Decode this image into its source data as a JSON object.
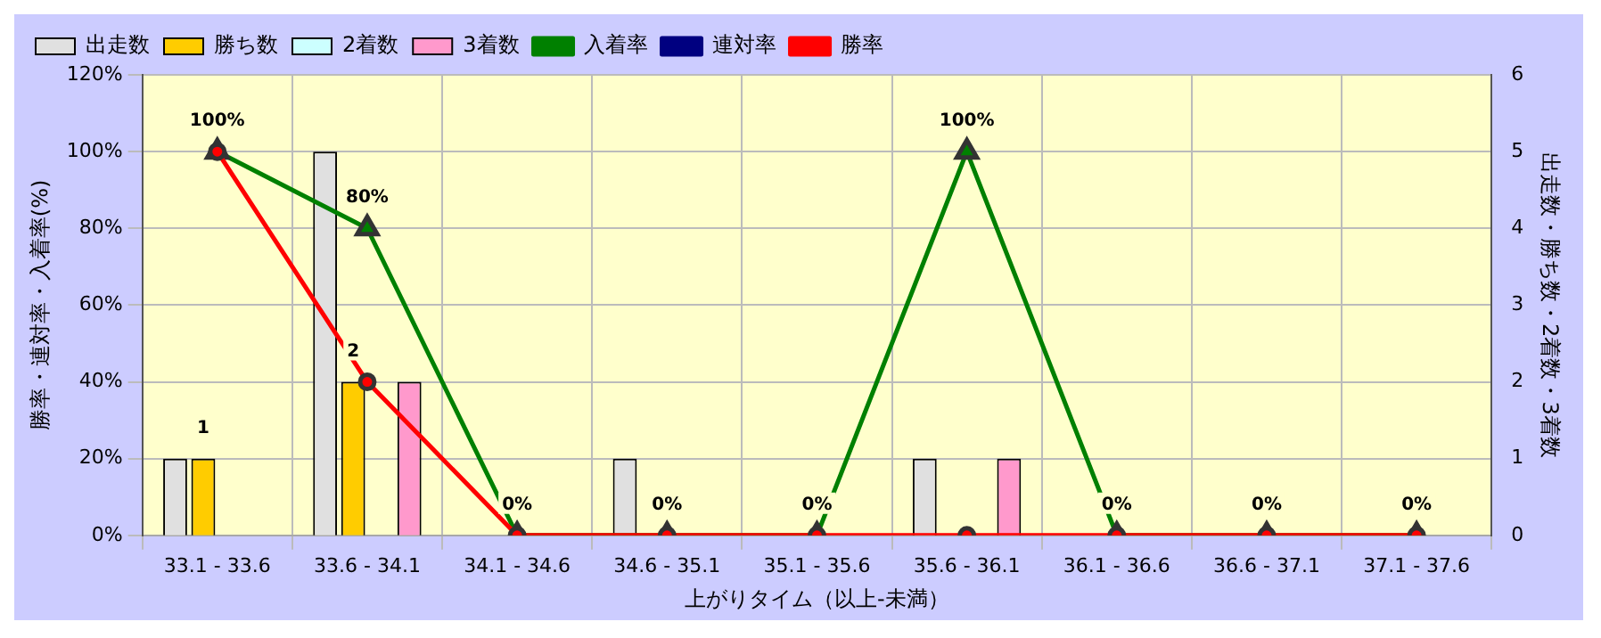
{
  "chart_data": {
    "type": "bar",
    "xlabel": "上がりタイム（以上-未満）",
    "ylabel": "勝率・連対率・入着率(%)",
    "y2label": "出走数・勝ち数・2着数・3着数",
    "categories": [
      "33.1 - 33.6",
      "33.6 - 34.1",
      "34.1 - 34.6",
      "34.6 - 35.1",
      "35.1 - 35.6",
      "35.6 - 36.1",
      "36.1 - 36.6",
      "36.6 - 37.1",
      "37.1 - 37.6"
    ],
    "series": [
      {
        "name": "出走数",
        "axis": "y2",
        "color": "#e0e0e0",
        "values": [
          1,
          5,
          0,
          1,
          0,
          1,
          0,
          0,
          0
        ]
      },
      {
        "name": "勝ち数",
        "axis": "y2",
        "color": "#ffcc00",
        "values": [
          1,
          2,
          0,
          0,
          0,
          0,
          0,
          0,
          0
        ],
        "value_labels": [
          "1",
          "2",
          null,
          null,
          null,
          null,
          null,
          null,
          null
        ]
      },
      {
        "name": "2着数",
        "axis": "y2",
        "color": "#ccffff",
        "values": [
          0,
          0,
          0,
          0,
          0,
          0,
          0,
          0,
          0
        ]
      },
      {
        "name": "3着数",
        "axis": "y2",
        "color": "#ff99cc",
        "values": [
          0,
          2,
          0,
          0,
          0,
          1,
          0,
          0,
          0
        ]
      },
      {
        "name": "入着率",
        "type": "line",
        "color": "#008000",
        "marker": "triangle",
        "values": [
          100,
          80,
          0,
          0,
          0,
          100,
          0,
          0,
          0
        ],
        "value_labels": [
          "100%",
          "80%",
          "0%",
          "0%",
          "0%",
          "100%",
          "0%",
          "0%",
          "0%"
        ]
      },
      {
        "name": "連対率",
        "type": "line",
        "color": "#000080",
        "marker": "diamond",
        "values": [
          null,
          null,
          null,
          null,
          null,
          null,
          null,
          null,
          null
        ]
      },
      {
        "name": "勝率",
        "type": "line",
        "color": "#ff0000",
        "marker": "circle",
        "values": [
          100,
          40,
          0,
          0,
          0,
          0,
          0,
          0,
          0
        ]
      }
    ],
    "ylim": [
      0,
      120
    ],
    "yticks": [
      {
        "value": 0,
        "label": "0%"
      },
      {
        "value": 20,
        "label": "20%"
      },
      {
        "value": 40,
        "label": "40%"
      },
      {
        "value": 60,
        "label": "60%"
      },
      {
        "value": 80,
        "label": "80%"
      },
      {
        "value": 100,
        "label": "100%"
      },
      {
        "value": 120,
        "label": "120%"
      }
    ],
    "y2lim": [
      0,
      6
    ],
    "y2ticks": [
      0,
      1,
      2,
      3,
      4,
      5,
      6
    ],
    "grid": true,
    "legend": "top"
  }
}
